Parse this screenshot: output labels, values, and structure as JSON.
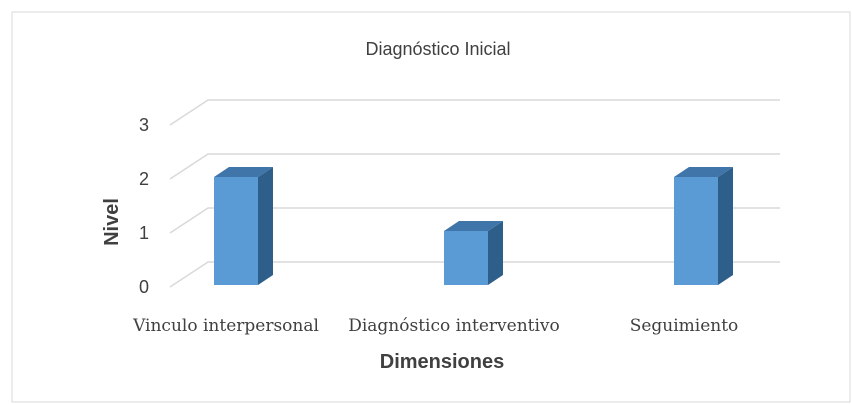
{
  "chart_data": {
    "type": "bar",
    "title": "Diagnóstico Inicial",
    "xlabel": "Dimensiones",
    "ylabel": "Nivel",
    "categories": [
      "Vinculo interpersonal",
      "Diagnóstico interventivo",
      "Seguimiento"
    ],
    "values": [
      2,
      1,
      2
    ],
    "yticks": [
      "0",
      "1",
      "2",
      "3"
    ],
    "ylim": [
      0,
      3
    ],
    "grid": true,
    "legend": "none",
    "colors": {
      "bar_front": "#5b9bd5",
      "bar_side": "#2e5f8a",
      "bar_top": "#3f75a8",
      "grid": "#d9d9d9",
      "frame": "#d9d9d9"
    }
  }
}
